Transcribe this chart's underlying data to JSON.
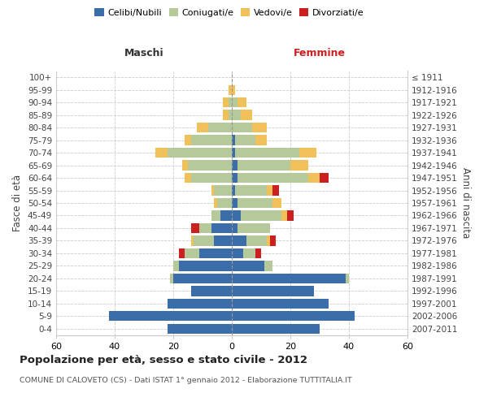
{
  "age_groups": [
    "0-4",
    "5-9",
    "10-14",
    "15-19",
    "20-24",
    "25-29",
    "30-34",
    "35-39",
    "40-44",
    "45-49",
    "50-54",
    "55-59",
    "60-64",
    "65-69",
    "70-74",
    "75-79",
    "80-84",
    "85-89",
    "90-94",
    "95-99",
    "100+"
  ],
  "birth_years": [
    "2007-2011",
    "2002-2006",
    "1997-2001",
    "1992-1996",
    "1987-1991",
    "1982-1986",
    "1977-1981",
    "1972-1976",
    "1967-1971",
    "1962-1966",
    "1957-1961",
    "1952-1956",
    "1947-1951",
    "1942-1946",
    "1937-1941",
    "1932-1936",
    "1927-1931",
    "1922-1926",
    "1917-1921",
    "1912-1916",
    "≤ 1911"
  ],
  "maschi": {
    "celibi": [
      22,
      42,
      22,
      14,
      20,
      18,
      11,
      6,
      7,
      4,
      0,
      0,
      0,
      0,
      0,
      0,
      0,
      0,
      0,
      0,
      0
    ],
    "coniugati": [
      0,
      0,
      0,
      0,
      1,
      2,
      5,
      7,
      4,
      3,
      5,
      6,
      14,
      15,
      22,
      14,
      8,
      1,
      1,
      0,
      0
    ],
    "vedovi": [
      0,
      0,
      0,
      0,
      0,
      0,
      0,
      1,
      0,
      0,
      1,
      1,
      2,
      2,
      4,
      2,
      4,
      2,
      2,
      1,
      0
    ],
    "divorziati": [
      0,
      0,
      0,
      0,
      0,
      0,
      2,
      0,
      3,
      0,
      0,
      0,
      0,
      0,
      0,
      0,
      0,
      0,
      0,
      0,
      0
    ]
  },
  "femmine": {
    "nubili": [
      30,
      42,
      33,
      28,
      39,
      11,
      4,
      5,
      2,
      3,
      2,
      1,
      2,
      2,
      1,
      1,
      0,
      0,
      0,
      0,
      0
    ],
    "coniugate": [
      0,
      0,
      0,
      0,
      1,
      3,
      4,
      7,
      11,
      14,
      12,
      11,
      24,
      18,
      22,
      7,
      7,
      3,
      2,
      0,
      0
    ],
    "vedove": [
      0,
      0,
      0,
      0,
      0,
      0,
      0,
      1,
      0,
      2,
      3,
      2,
      4,
      6,
      6,
      4,
      5,
      4,
      3,
      1,
      0
    ],
    "divorziate": [
      0,
      0,
      0,
      0,
      0,
      0,
      2,
      2,
      0,
      2,
      0,
      2,
      3,
      0,
      0,
      0,
      0,
      0,
      0,
      0,
      0
    ]
  },
  "colors": {
    "celibi": "#3b6ea8",
    "coniugati": "#b5c99a",
    "vedovi": "#f0c05a",
    "divorziati": "#cc2020"
  },
  "xlim": 60,
  "title": "Popolazione per età, sesso e stato civile - 2012",
  "subtitle": "COMUNE DI CALOVETO (CS) - Dati ISTAT 1° gennaio 2012 - Elaborazione TUTTITALIA.IT",
  "ylabel_left": "Fasce di età",
  "ylabel_right": "Anni di nascita",
  "label_maschi": "Maschi",
  "label_femmine": "Femmine",
  "legend": [
    "Celibi/Nubili",
    "Coniugati/e",
    "Vedovi/e",
    "Divorziati/e"
  ],
  "bg_color": "#ffffff",
  "grid_color": "#cccccc",
  "spine_color": "#cccccc"
}
